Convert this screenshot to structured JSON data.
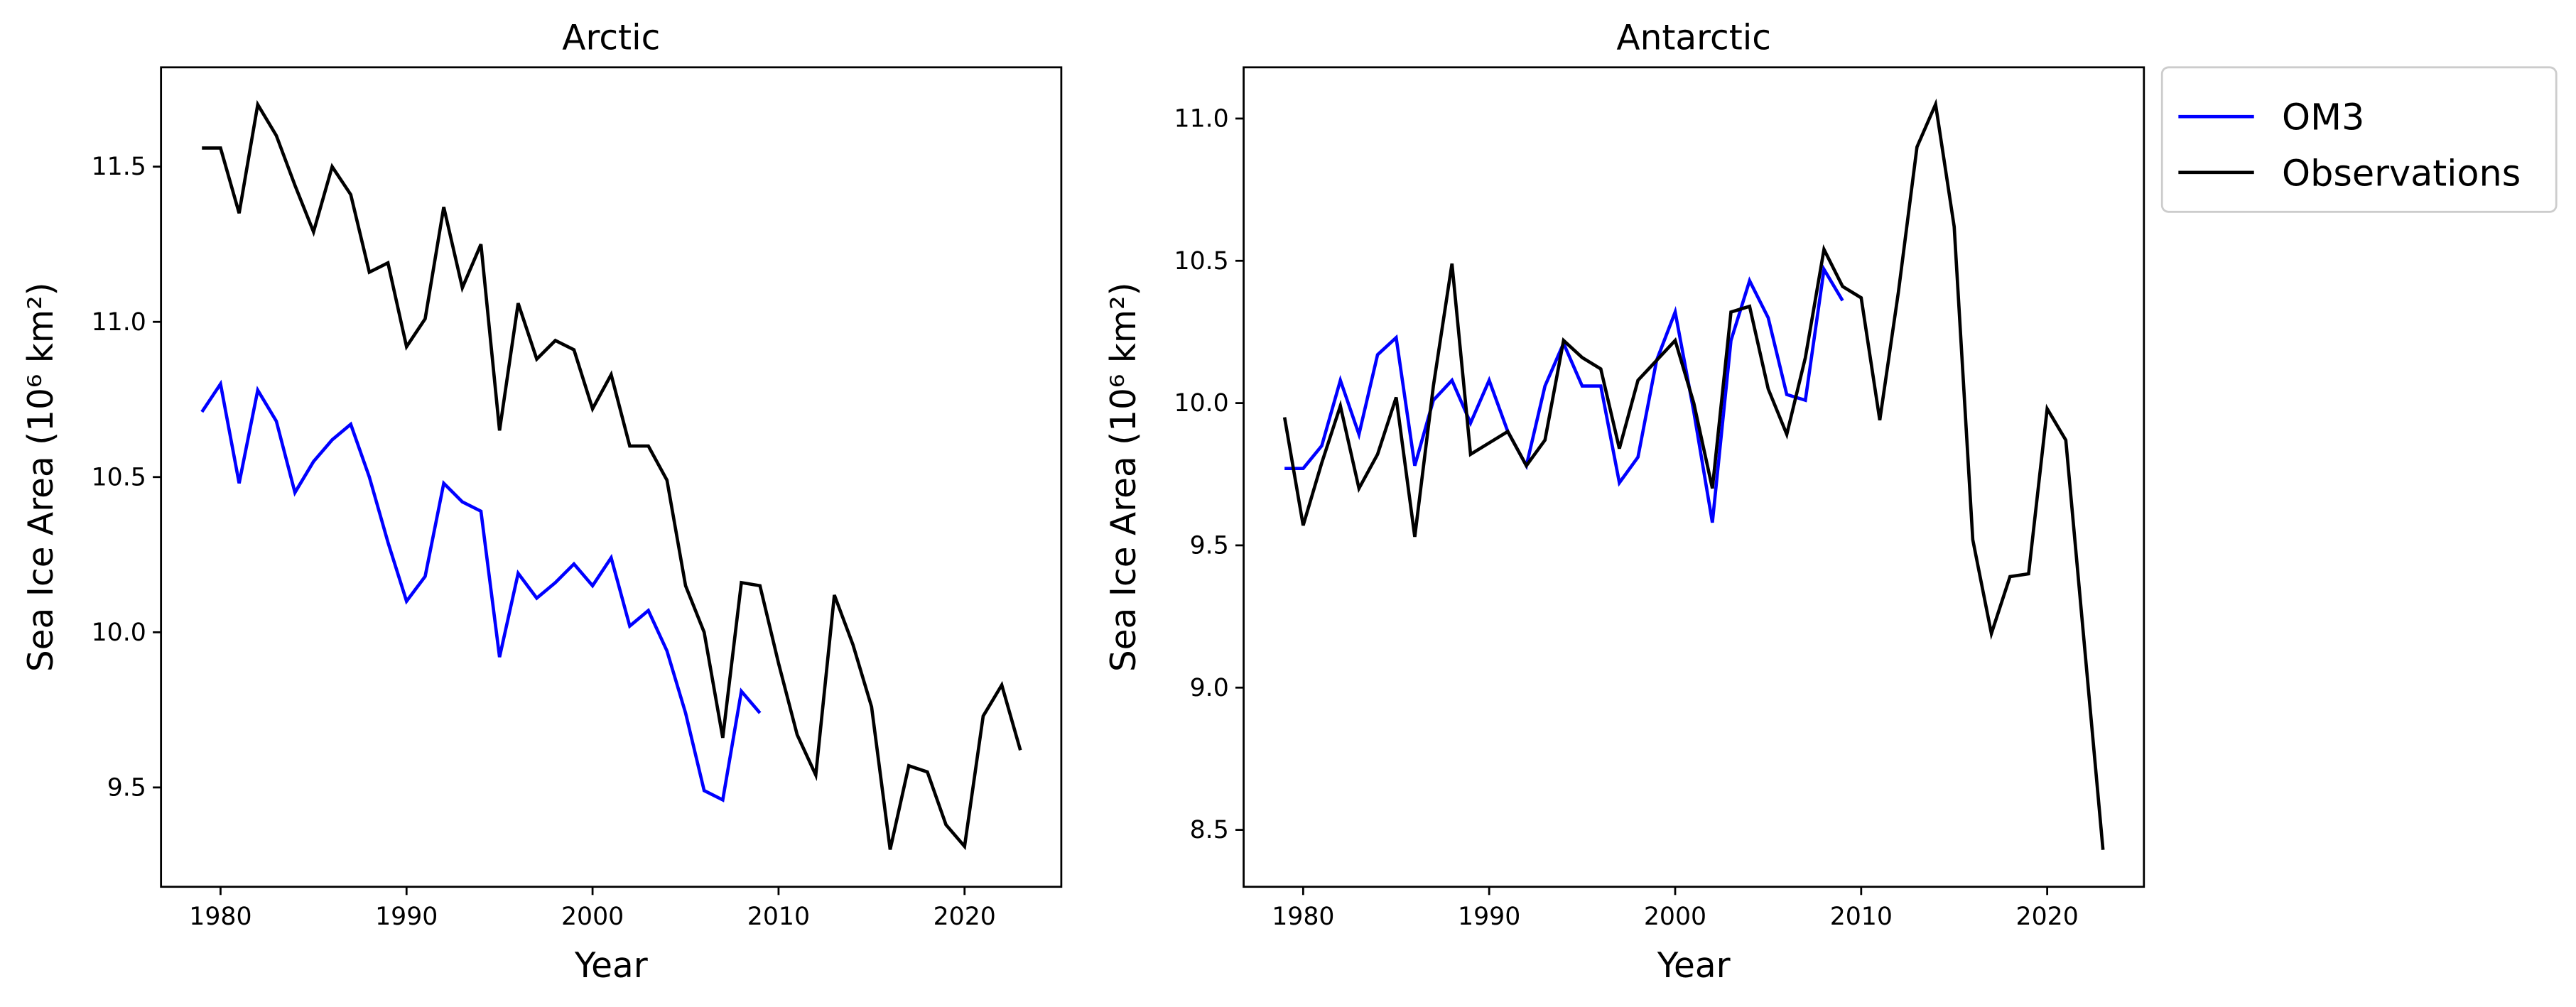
{
  "chart_data": [
    {
      "type": "line",
      "title": "Arctic",
      "xlabel": "Year",
      "ylabel": "Sea Ice Area (10⁶ km²)",
      "xlim": [
        1976.8,
        2025.2
      ],
      "xticks": [
        1980,
        1990,
        2000,
        2010,
        2020
      ],
      "ylim": [
        9.18,
        11.82
      ],
      "yticks": [
        9.5,
        {
          "value": 10,
          "label": "10.0"
        },
        10.5,
        {
          "value": 11,
          "label": "11.0"
        },
        11.5
      ],
      "series": [
        {
          "color": "#0000ff",
          "x": [
            1979,
            1980,
            1981,
            1982,
            1983,
            1984,
            1985,
            1986,
            1987,
            1988,
            1989,
            1990,
            1991,
            1992,
            1993,
            1994,
            1995,
            1996,
            1997,
            1998,
            1999,
            2000,
            2001,
            2002,
            2003,
            2004,
            2005,
            2006,
            2007,
            2008,
            2009
          ],
          "values": [
            10.71,
            10.8,
            10.48,
            10.78,
            10.68,
            10.45,
            10.55,
            10.62,
            10.67,
            10.5,
            10.29,
            10.1,
            10.18,
            10.48,
            10.42,
            10.39,
            9.92,
            10.19,
            10.11,
            10.16,
            10.22,
            10.15,
            10.24,
            10.02,
            10.07,
            9.94,
            9.74,
            9.49,
            9.46,
            9.81,
            9.74
          ]
        },
        {
          "color": "#000000",
          "x": [
            1979,
            1980,
            1981,
            1982,
            1983,
            1984,
            1985,
            1986,
            1987,
            1988,
            1989,
            1990,
            1991,
            1992,
            1993,
            1994,
            1995,
            1996,
            1997,
            1998,
            1999,
            2000,
            2001,
            2002,
            2003,
            2004,
            2005,
            2006,
            2007,
            2008,
            2009,
            2010,
            2011,
            2012,
            2013,
            2014,
            2015,
            2016,
            2017,
            2018,
            2019,
            2020,
            2021,
            2022,
            2023
          ],
          "values": [
            11.56,
            11.56,
            11.35,
            11.7,
            11.6,
            11.44,
            11.29,
            11.5,
            11.41,
            11.16,
            11.19,
            10.92,
            11.01,
            11.37,
            11.11,
            11.25,
            10.65,
            11.06,
            10.88,
            10.94,
            10.91,
            10.72,
            10.83,
            10.6,
            10.6,
            10.49,
            10.15,
            10.0,
            9.66,
            10.16,
            10.15,
            9.9,
            9.67,
            9.54,
            10.12,
            9.96,
            9.76,
            9.3,
            9.57,
            9.55,
            9.38,
            9.31,
            9.73,
            9.83,
            9.62
          ]
        }
      ]
    },
    {
      "type": "line",
      "title": "Antarctic",
      "xlabel": "Year",
      "ylabel": "Sea Ice Area (10⁶ km²)",
      "xlim": [
        1976.8,
        2025.2
      ],
      "xticks": [
        1980,
        1990,
        2000,
        2010,
        2020
      ],
      "ylim": [
        8.3,
        11.18
      ],
      "yticks": [
        8.5,
        {
          "value": 9,
          "label": "9.0"
        },
        9.5,
        {
          "value": 10,
          "label": "10.0"
        },
        10.5,
        {
          "value": 11,
          "label": "11.0"
        }
      ],
      "legend": "outside upper right",
      "series": [
        {
          "name": "OM3",
          "color": "#0000ff",
          "x": [
            1979,
            1980,
            1981,
            1982,
            1983,
            1984,
            1985,
            1986,
            1987,
            1988,
            1989,
            1990,
            1991,
            1992,
            1993,
            1994,
            1995,
            1996,
            1997,
            1998,
            1999,
            2000,
            2001,
            2002,
            2003,
            2004,
            2005,
            2006,
            2007,
            2008,
            2009
          ],
          "values": [
            9.77,
            9.77,
            9.85,
            10.08,
            9.89,
            10.17,
            10.23,
            9.78,
            10.01,
            10.08,
            9.93,
            10.08,
            9.9,
            9.78,
            10.06,
            10.21,
            10.06,
            10.06,
            9.72,
            9.81,
            10.15,
            10.32,
            9.97,
            9.58,
            10.22,
            10.43,
            10.3,
            10.03,
            10.01,
            10.47,
            10.36
          ]
        },
        {
          "name": "Observations",
          "color": "#000000",
          "x": [
            1979,
            1980,
            1981,
            1982,
            1983,
            1984,
            1985,
            1986,
            1987,
            1988,
            1989,
            1990,
            1991,
            1992,
            1993,
            1994,
            1995,
            1996,
            1997,
            1998,
            1999,
            2000,
            2001,
            2002,
            2003,
            2004,
            2005,
            2006,
            2007,
            2008,
            2009,
            2010,
            2011,
            2012,
            2013,
            2014,
            2015,
            2016,
            2017,
            2018,
            2019,
            2020,
            2021,
            2022,
            2023
          ],
          "values": [
            9.95,
            9.57,
            9.79,
            9.99,
            9.7,
            9.82,
            10.02,
            9.53,
            10.06,
            10.49,
            9.82,
            9.86,
            9.9,
            9.78,
            9.87,
            10.22,
            10.16,
            10.12,
            9.84,
            10.08,
            10.15,
            10.22,
            10.0,
            9.7,
            10.32,
            10.34,
            10.05,
            9.89,
            10.16,
            10.54,
            10.41,
            10.37,
            9.94,
            10.39,
            10.9,
            11.05,
            10.62,
            9.52,
            9.19,
            9.39,
            9.4,
            9.98,
            9.87,
            9.15,
            8.43
          ]
        }
      ]
    }
  ]
}
